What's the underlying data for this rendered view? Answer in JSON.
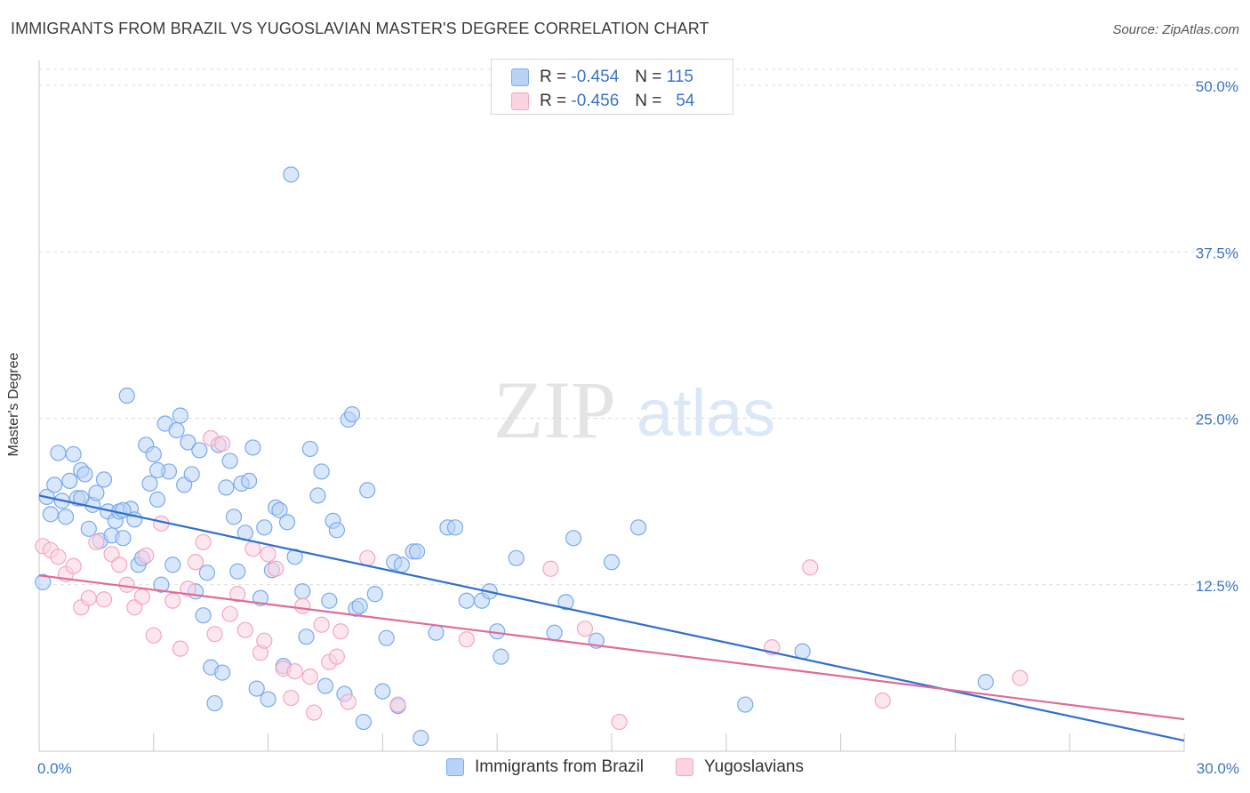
{
  "title": "IMMIGRANTS FROM BRAZIL VS YUGOSLAVIAN MASTER'S DEGREE CORRELATION CHART",
  "source": "Source: ZipAtlas.com",
  "watermark": {
    "zip": "ZIP",
    "atlas": "atlas"
  },
  "legend_top": [
    {
      "r_label": "R =",
      "r_value": "-0.454",
      "n_label": "N =",
      "n_value": "115"
    },
    {
      "r_label": "R =",
      "r_value": "-0.456",
      "n_label": "N =",
      "n_value": "54"
    }
  ],
  "chart_data": {
    "type": "scatter",
    "xlabel": "",
    "ylabel": "Master's Degree",
    "xlim": [
      0,
      30
    ],
    "ylim": [
      0,
      50
    ],
    "x_tick_labels": [
      {
        "value": 0,
        "label": "0.0%"
      },
      {
        "value": 30,
        "label": "30.0%"
      }
    ],
    "y_tick_labels": [
      {
        "value": 12.5,
        "label": "12.5%"
      },
      {
        "value": 25,
        "label": "25.0%"
      },
      {
        "value": 37.5,
        "label": "37.5%"
      },
      {
        "value": 50,
        "label": "50.0%"
      }
    ],
    "grid": "horizontal dashed",
    "legend": "bottom-center",
    "series": [
      {
        "name": "Immigrants from Brazil",
        "color": "#7aaaf0",
        "trend_color": "#2f6fd0",
        "trend": [
          [
            0,
            19.2
          ],
          [
            30,
            0.8
          ]
        ],
        "points": [
          [
            0.2,
            19.1
          ],
          [
            0.4,
            20.0
          ],
          [
            0.5,
            22.4
          ],
          [
            0.6,
            18.8
          ],
          [
            0.7,
            17.6
          ],
          [
            0.8,
            20.3
          ],
          [
            0.9,
            22.3
          ],
          [
            1.0,
            19.0
          ],
          [
            1.1,
            21.1
          ],
          [
            1.2,
            20.8
          ],
          [
            1.3,
            16.7
          ],
          [
            1.4,
            18.5
          ],
          [
            1.5,
            19.4
          ],
          [
            1.6,
            15.8
          ],
          [
            1.7,
            20.4
          ],
          [
            1.8,
            18.0
          ],
          [
            1.9,
            16.2
          ],
          [
            2.0,
            17.3
          ],
          [
            2.1,
            18.0
          ],
          [
            2.2,
            16.0
          ],
          [
            2.3,
            26.7
          ],
          [
            2.4,
            18.2
          ],
          [
            2.5,
            17.4
          ],
          [
            2.6,
            14.0
          ],
          [
            2.7,
            14.5
          ],
          [
            2.8,
            23.0
          ],
          [
            2.9,
            20.1
          ],
          [
            3.0,
            22.3
          ],
          [
            3.1,
            18.9
          ],
          [
            3.2,
            12.5
          ],
          [
            3.3,
            24.6
          ],
          [
            3.4,
            21.0
          ],
          [
            3.5,
            14.0
          ],
          [
            3.6,
            24.1
          ],
          [
            3.7,
            25.2
          ],
          [
            3.8,
            20.0
          ],
          [
            3.9,
            23.2
          ],
          [
            4.0,
            20.8
          ],
          [
            4.1,
            12.0
          ],
          [
            4.2,
            22.6
          ],
          [
            4.3,
            10.2
          ],
          [
            4.4,
            13.4
          ],
          [
            4.5,
            6.3
          ],
          [
            4.6,
            3.6
          ],
          [
            4.7,
            23.0
          ],
          [
            4.8,
            5.9
          ],
          [
            4.9,
            19.8
          ],
          [
            5.0,
            21.8
          ],
          [
            5.1,
            17.6
          ],
          [
            5.2,
            13.5
          ],
          [
            5.3,
            20.1
          ],
          [
            5.4,
            16.4
          ],
          [
            5.5,
            20.3
          ],
          [
            5.6,
            22.8
          ],
          [
            5.7,
            4.7
          ],
          [
            5.8,
            11.5
          ],
          [
            5.9,
            16.8
          ],
          [
            6.0,
            3.9
          ],
          [
            6.1,
            13.6
          ],
          [
            6.2,
            18.3
          ],
          [
            6.3,
            18.1
          ],
          [
            6.4,
            6.4
          ],
          [
            6.5,
            17.2
          ],
          [
            6.6,
            43.3
          ],
          [
            6.7,
            14.6
          ],
          [
            6.9,
            12.0
          ],
          [
            7.0,
            8.6
          ],
          [
            7.1,
            22.7
          ],
          [
            7.3,
            19.2
          ],
          [
            7.4,
            21.0
          ],
          [
            7.5,
            4.9
          ],
          [
            7.6,
            11.3
          ],
          [
            7.7,
            17.3
          ],
          [
            7.8,
            16.6
          ],
          [
            8.0,
            4.3
          ],
          [
            8.1,
            24.9
          ],
          [
            8.2,
            25.3
          ],
          [
            8.3,
            10.7
          ],
          [
            8.4,
            10.9
          ],
          [
            8.5,
            2.2
          ],
          [
            8.6,
            19.6
          ],
          [
            8.8,
            11.8
          ],
          [
            9.0,
            4.5
          ],
          [
            9.1,
            8.5
          ],
          [
            9.3,
            14.2
          ],
          [
            9.4,
            3.4
          ],
          [
            9.5,
            14.0
          ],
          [
            9.8,
            15.0
          ],
          [
            9.9,
            15.0
          ],
          [
            10.0,
            1.0
          ],
          [
            10.4,
            8.9
          ],
          [
            10.7,
            16.8
          ],
          [
            10.9,
            16.8
          ],
          [
            11.2,
            11.3
          ],
          [
            11.6,
            11.3
          ],
          [
            11.8,
            12.0
          ],
          [
            12.0,
            9.0
          ],
          [
            12.1,
            7.1
          ],
          [
            12.5,
            14.5
          ],
          [
            13.5,
            8.9
          ],
          [
            13.8,
            11.2
          ],
          [
            14.0,
            16.0
          ],
          [
            14.6,
            8.3
          ],
          [
            15.0,
            14.2
          ],
          [
            15.7,
            16.8
          ],
          [
            18.5,
            3.5
          ],
          [
            20.0,
            7.5
          ],
          [
            24.8,
            5.2
          ],
          [
            0.1,
            12.7
          ],
          [
            0.3,
            17.8
          ],
          [
            1.1,
            19.0
          ],
          [
            2.2,
            18.1
          ],
          [
            3.1,
            21.1
          ]
        ]
      },
      {
        "name": "Yugoslavians",
        "color": "#f4a6c0",
        "trend_color": "#e06a98",
        "trend": [
          [
            0,
            13.2
          ],
          [
            30,
            2.4
          ]
        ],
        "points": [
          [
            0.1,
            15.4
          ],
          [
            0.3,
            15.1
          ],
          [
            0.5,
            14.6
          ],
          [
            0.7,
            13.3
          ],
          [
            0.9,
            13.9
          ],
          [
            1.1,
            10.8
          ],
          [
            1.3,
            11.5
          ],
          [
            1.5,
            15.7
          ],
          [
            1.7,
            11.4
          ],
          [
            1.9,
            14.8
          ],
          [
            2.1,
            14.0
          ],
          [
            2.3,
            12.5
          ],
          [
            2.5,
            10.8
          ],
          [
            2.7,
            11.6
          ],
          [
            2.8,
            14.7
          ],
          [
            3.0,
            8.7
          ],
          [
            3.2,
            17.1
          ],
          [
            3.5,
            11.3
          ],
          [
            3.7,
            7.7
          ],
          [
            3.9,
            12.2
          ],
          [
            4.1,
            14.2
          ],
          [
            4.3,
            15.7
          ],
          [
            4.5,
            23.5
          ],
          [
            4.6,
            8.8
          ],
          [
            4.8,
            23.1
          ],
          [
            5.0,
            10.3
          ],
          [
            5.2,
            11.8
          ],
          [
            5.4,
            9.1
          ],
          [
            5.6,
            15.2
          ],
          [
            5.8,
            7.4
          ],
          [
            5.9,
            8.3
          ],
          [
            6.0,
            14.8
          ],
          [
            6.2,
            13.7
          ],
          [
            6.4,
            6.2
          ],
          [
            6.6,
            4.0
          ],
          [
            6.7,
            6.0
          ],
          [
            6.9,
            10.9
          ],
          [
            7.1,
            5.6
          ],
          [
            7.2,
            2.9
          ],
          [
            7.4,
            9.5
          ],
          [
            7.6,
            6.7
          ],
          [
            7.8,
            7.1
          ],
          [
            7.9,
            9.0
          ],
          [
            8.1,
            3.7
          ],
          [
            8.6,
            14.5
          ],
          [
            9.4,
            3.5
          ],
          [
            11.2,
            8.4
          ],
          [
            13.4,
            13.7
          ],
          [
            14.3,
            9.2
          ],
          [
            15.2,
            2.2
          ],
          [
            19.2,
            7.8
          ],
          [
            20.2,
            13.8
          ],
          [
            22.1,
            3.8
          ],
          [
            25.7,
            5.5
          ]
        ]
      }
    ]
  },
  "legend_bottom": [
    {
      "label": "Immigrants from Brazil"
    },
    {
      "label": "Yugoslavians"
    }
  ],
  "colors": {
    "blue_fill": "#b9d3f6",
    "blue_edge": "#7aaaf0",
    "pink_fill": "#fbd3e1",
    "pink_edge": "#f4a6c0",
    "tick_label": "#3b74c9"
  }
}
